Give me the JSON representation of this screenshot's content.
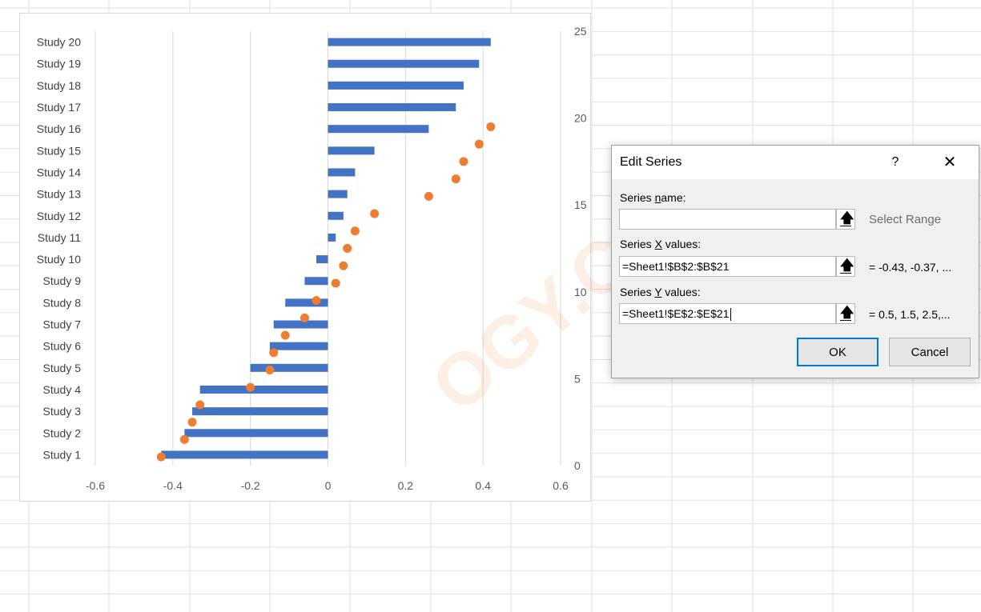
{
  "chart_data": {
    "type": "bar",
    "categories": [
      "Study 1",
      "Study 2",
      "Study 3",
      "Study 4",
      "Study 5",
      "Study 6",
      "Study 7",
      "Study 8",
      "Study 9",
      "Study 10",
      "Study 11",
      "Study 12",
      "Study 13",
      "Study 14",
      "Study 15",
      "Study 16",
      "Study 17",
      "Study 18",
      "Study 19",
      "Study 20"
    ],
    "series": [
      {
        "type": "bar",
        "orientation": "horizontal",
        "color": "#4472c4",
        "values": [
          -0.43,
          -0.37,
          -0.35,
          -0.33,
          -0.2,
          -0.15,
          -0.14,
          -0.11,
          -0.06,
          -0.03,
          0.02,
          0.04,
          0.05,
          0.07,
          0.12,
          0.26,
          0.33,
          0.35,
          0.39,
          0.42
        ]
      },
      {
        "type": "scatter",
        "color": "#ed7d31",
        "x": [
          -0.43,
          -0.37,
          -0.35,
          -0.33,
          -0.2,
          -0.15,
          -0.14,
          -0.11,
          -0.06,
          -0.03,
          0.02,
          0.04,
          0.05,
          0.07,
          0.12,
          0.26,
          0.33,
          0.35,
          0.39,
          0.42
        ],
        "y": [
          0.5,
          1.5,
          2.5,
          3.5,
          4.5,
          5.5,
          6.5,
          7.5,
          8.5,
          9.5,
          10.5,
          11.5,
          12.5,
          13.5,
          14.5,
          15.5,
          16.5,
          17.5,
          18.5,
          19.5
        ]
      }
    ],
    "xlim": [
      -0.6,
      0.6
    ],
    "xticks": [
      "-0.6",
      "-0.4",
      "-0.2",
      "0",
      "0.2",
      "0.4",
      "0.6"
    ],
    "y2lim": [
      0,
      25
    ],
    "y2ticks": [
      "0",
      "5",
      "10",
      "15",
      "20",
      "25"
    ],
    "grid": "vertical"
  },
  "dialog": {
    "title": "Edit Series",
    "help": "?",
    "close": "✕",
    "series_name_label_pre": "Series ",
    "series_name_label_u": "n",
    "series_name_label_post": "ame:",
    "series_name_value": "",
    "select_range": "Select Range",
    "x_label_pre": "Series ",
    "x_label_u": "X",
    "x_label_post": " values:",
    "x_value": "=Sheet1!$B$2:$B$21",
    "x_preview": "=  -0.43, -0.37, ...",
    "y_label_pre": "Series ",
    "y_label_u": "Y",
    "y_label_post": " values:",
    "y_value": "=Sheet1!$E$2:$E$21",
    "y_preview": "=  0.5, 1.5, 2.5,...",
    "ok": "OK",
    "cancel": "Cancel",
    "ref_icon": "range-selector-arrow-icon"
  },
  "watermark": "OGY.COM"
}
